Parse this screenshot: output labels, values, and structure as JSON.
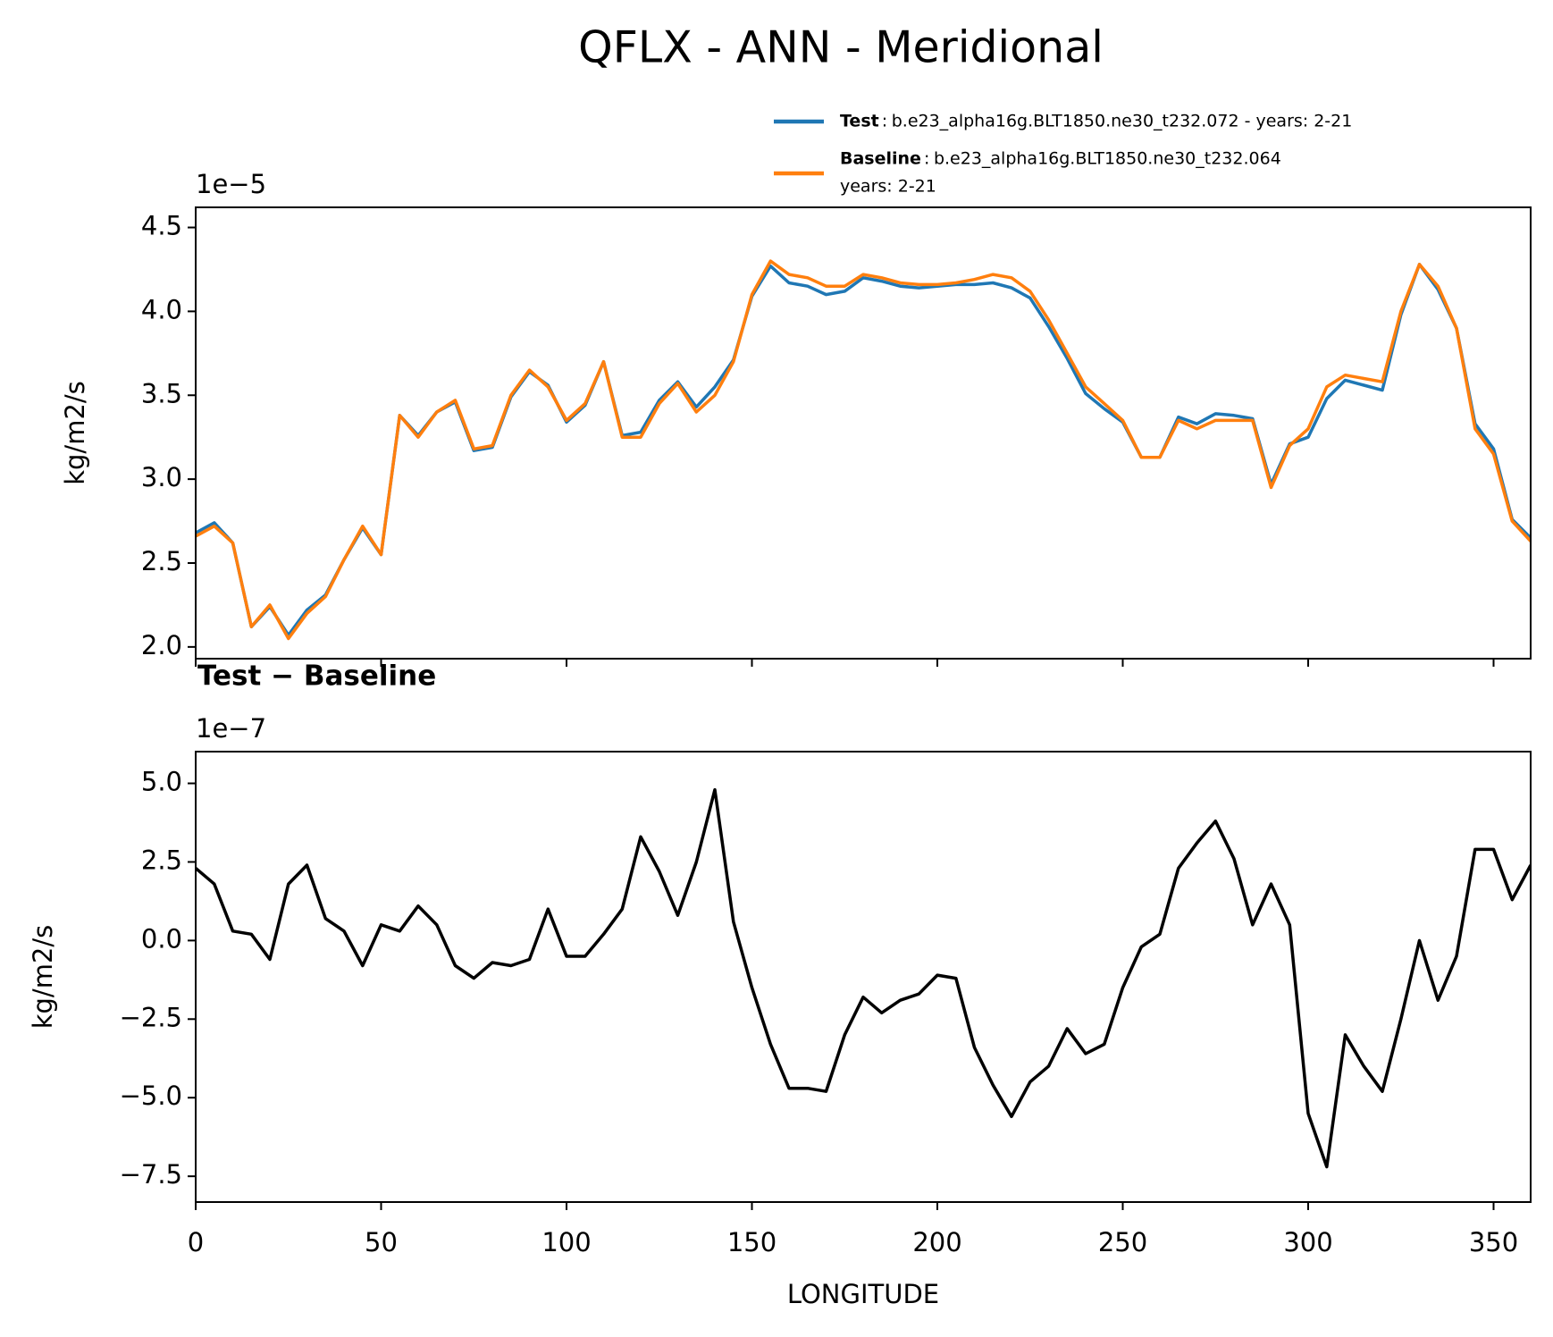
{
  "title": "QFLX - ANN - Meridional",
  "chart_data": [
    {
      "type": "line",
      "offset_label": "1e−5",
      "ylabel": "kg/m2/s",
      "xlim": [
        0,
        360
      ],
      "xticks": [
        0,
        50,
        100,
        150,
        200,
        250,
        300,
        350
      ],
      "ylim": [
        1.93,
        4.62
      ],
      "yticks": [
        {
          "value": 2.0,
          "label": "2.0"
        },
        {
          "value": 2.5,
          "label": "2.5"
        },
        {
          "value": 3.0,
          "label": "3.0"
        },
        {
          "value": 3.5,
          "label": "3.5"
        },
        {
          "value": 4.0,
          "label": "4.0"
        },
        {
          "value": 4.5,
          "label": "4.5"
        }
      ],
      "x": [
        0,
        5,
        10,
        15,
        20,
        25,
        30,
        35,
        40,
        45,
        50,
        55,
        60,
        65,
        70,
        75,
        80,
        85,
        90,
        95,
        100,
        105,
        110,
        115,
        120,
        125,
        130,
        135,
        140,
        145,
        150,
        155,
        160,
        165,
        170,
        175,
        180,
        185,
        190,
        195,
        200,
        205,
        210,
        215,
        220,
        225,
        230,
        235,
        240,
        245,
        250,
        255,
        260,
        265,
        270,
        275,
        280,
        285,
        290,
        295,
        300,
        305,
        310,
        315,
        320,
        325,
        330,
        335,
        340,
        345,
        350,
        355,
        360
      ],
      "series": [
        {
          "name": "Test",
          "description": [
            "b.e23_alpha16g.BLT1850.ne30_t232.072 - years: 2-21"
          ],
          "color": "#1f77b4",
          "values": [
            2.68,
            2.74,
            2.62,
            2.12,
            2.24,
            2.07,
            2.22,
            2.31,
            2.52,
            2.71,
            2.55,
            3.38,
            3.26,
            3.4,
            3.46,
            3.17,
            3.19,
            3.49,
            3.64,
            3.56,
            3.34,
            3.44,
            3.7,
            3.26,
            3.28,
            3.47,
            3.58,
            3.43,
            3.55,
            3.71,
            4.09,
            4.27,
            4.17,
            4.15,
            4.1,
            4.12,
            4.2,
            4.18,
            4.15,
            4.14,
            4.15,
            4.16,
            4.16,
            4.17,
            4.14,
            4.08,
            3.91,
            3.72,
            3.51,
            3.42,
            3.34,
            3.13,
            3.13,
            3.37,
            3.33,
            3.39,
            3.38,
            3.36,
            2.97,
            3.21,
            3.25,
            3.48,
            3.59,
            3.56,
            3.53,
            3.98,
            4.28,
            4.13,
            3.9,
            3.33,
            3.18,
            2.76,
            2.65
          ]
        },
        {
          "name": "Baseline",
          "description": [
            "b.e23_alpha16g.BLT1850.ne30_t232.064",
            "years: 2-21"
          ],
          "color": "#ff7f0e",
          "values": [
            2.66,
            2.72,
            2.62,
            2.12,
            2.25,
            2.05,
            2.2,
            2.3,
            2.52,
            2.72,
            2.55,
            3.38,
            3.25,
            3.4,
            3.47,
            3.18,
            3.2,
            3.5,
            3.65,
            3.55,
            3.35,
            3.45,
            3.7,
            3.25,
            3.25,
            3.45,
            3.57,
            3.4,
            3.5,
            3.7,
            4.1,
            4.3,
            4.22,
            4.2,
            4.15,
            4.15,
            4.22,
            4.2,
            4.17,
            4.16,
            4.16,
            4.17,
            4.19,
            4.22,
            4.2,
            4.12,
            3.95,
            3.75,
            3.55,
            3.45,
            3.35,
            3.13,
            3.13,
            3.35,
            3.3,
            3.35,
            3.35,
            3.35,
            2.95,
            3.2,
            3.3,
            3.55,
            3.62,
            3.6,
            3.58,
            4.0,
            4.28,
            4.15,
            3.9,
            3.3,
            3.15,
            2.75,
            2.63
          ]
        }
      ]
    },
    {
      "type": "line",
      "subtitle": "Test − Baseline",
      "offset_label": "1e−7",
      "ylabel": "kg/m2/s",
      "xlabel": "LONGITUDE",
      "xlim": [
        0,
        360
      ],
      "xticks": [
        0,
        50,
        100,
        150,
        200,
        250,
        300,
        350
      ],
      "ylim": [
        -8.32,
        6.01
      ],
      "yticks": [
        {
          "value": -7.5,
          "label": "−7.5"
        },
        {
          "value": -5.0,
          "label": "−5.0"
        },
        {
          "value": -2.5,
          "label": "−2.5"
        },
        {
          "value": 0.0,
          "label": "0.0"
        },
        {
          "value": 2.5,
          "label": "2.5"
        },
        {
          "value": 5.0,
          "label": "5.0"
        }
      ],
      "x": [
        0,
        5,
        10,
        15,
        20,
        25,
        30,
        35,
        40,
        45,
        50,
        55,
        60,
        65,
        70,
        75,
        80,
        85,
        90,
        95,
        100,
        105,
        110,
        115,
        120,
        125,
        130,
        135,
        140,
        145,
        150,
        155,
        160,
        165,
        170,
        175,
        180,
        185,
        190,
        195,
        200,
        205,
        210,
        215,
        220,
        225,
        230,
        235,
        240,
        245,
        250,
        255,
        260,
        265,
        270,
        275,
        280,
        285,
        290,
        295,
        300,
        305,
        310,
        315,
        320,
        325,
        330,
        335,
        340,
        345,
        350,
        355,
        360
      ],
      "series": [
        {
          "color": "#000000",
          "values": [
            2.3,
            1.8,
            0.3,
            0.2,
            -0.6,
            1.8,
            2.4,
            0.7,
            0.3,
            -0.8,
            0.5,
            0.3,
            1.1,
            0.5,
            -0.8,
            -1.2,
            -0.7,
            -0.8,
            -0.6,
            1.0,
            -0.5,
            -0.5,
            0.2,
            1.0,
            3.3,
            2.2,
            0.8,
            2.5,
            4.8,
            0.6,
            -1.5,
            -3.3,
            -4.7,
            -4.7,
            -4.8,
            -3.0,
            -1.8,
            -2.3,
            -1.9,
            -1.7,
            -1.1,
            -1.2,
            -3.4,
            -4.6,
            -5.6,
            -4.5,
            -4.0,
            -2.8,
            -3.6,
            -3.3,
            -1.5,
            -0.2,
            0.2,
            2.3,
            3.1,
            3.8,
            2.6,
            0.5,
            1.8,
            0.5,
            -5.5,
            -7.2,
            -3.0,
            -4.0,
            -4.8,
            -2.5,
            0.0,
            -1.9,
            -0.5,
            2.9,
            2.9,
            1.3,
            2.4
          ]
        }
      ]
    }
  ]
}
